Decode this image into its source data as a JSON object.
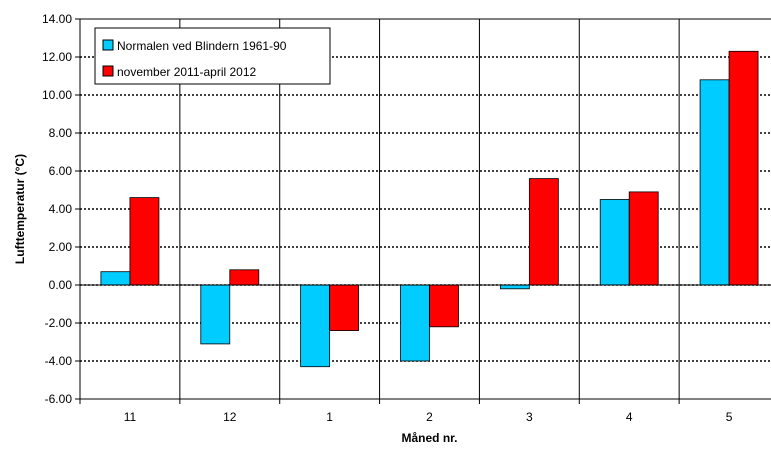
{
  "chart_data": {
    "type": "bar",
    "title": "",
    "xlabel": "Måned nr.",
    "ylabel": "Lufttemperatur (°C)",
    "ylim": [
      -6,
      14
    ],
    "ytick_step": 2,
    "ytick_labels": [
      "-6.00",
      "-4.00",
      "-2.00",
      "0.00",
      "2.00",
      "4.00",
      "6.00",
      "8.00",
      "10.00",
      "12.00",
      "14.00"
    ],
    "categories": [
      "11",
      "12",
      "1",
      "2",
      "3",
      "4",
      "5"
    ],
    "grid": "horizontal dotted, vertical solid separators",
    "legend_position": "top-left",
    "series": [
      {
        "name": "Normalen ved Blindern 1961-90",
        "color": "#00CCFF",
        "values": [
          0.7,
          -3.1,
          -4.3,
          -4.0,
          -0.2,
          4.5,
          10.8
        ]
      },
      {
        "name": "november 2011-april 2012",
        "color": "#FF0000",
        "values": [
          4.6,
          0.8,
          -2.4,
          -2.2,
          5.6,
          4.9,
          12.3
        ]
      }
    ]
  }
}
